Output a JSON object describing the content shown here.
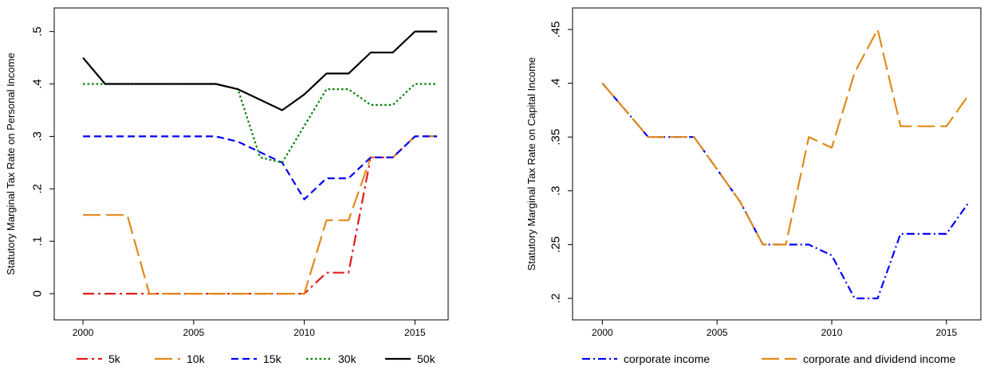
{
  "chart_data": [
    {
      "type": "line",
      "ylabel": "Statutory Marginal Tax Rate on Personal Income",
      "xlabel": "",
      "xlim": [
        1998.7,
        2016.5
      ],
      "ylim": [
        -0.05,
        0.545
      ],
      "xticks": [
        2000,
        2005,
        2010,
        2015
      ],
      "xtick_labels": [
        "2000",
        "2005",
        "2010",
        "2015"
      ],
      "yticks": [
        0,
        0.1,
        0.2,
        0.3,
        0.4,
        0.5
      ],
      "ytick_labels": [
        "0",
        ".1",
        ".2",
        ".3",
        ".4",
        ".5"
      ],
      "grid": false,
      "legend_position": "bottom",
      "x": [
        2000,
        2001,
        2002,
        2003,
        2004,
        2005,
        2006,
        2007,
        2008,
        2009,
        2010,
        2011,
        2012,
        2013,
        2014,
        2015,
        2016
      ],
      "series": [
        {
          "name": "5k",
          "color": "#e41a1c",
          "dash": "longdashdot",
          "values": [
            0,
            0,
            0,
            0,
            0,
            0,
            0,
            0,
            0,
            0,
            0,
            0.04,
            0.04,
            0.26,
            0.26,
            0.3,
            0.3
          ]
        },
        {
          "name": "10k",
          "color": "#e08a1a",
          "dash": "longdash",
          "values": [
            0.15,
            0.15,
            0.15,
            0,
            0,
            0,
            0,
            0,
            0,
            0,
            0,
            0.14,
            0.14,
            0.26,
            0.26,
            0.3,
            0.3
          ]
        },
        {
          "name": "15k",
          "color": "#0000ff",
          "dash": "dash",
          "values": [
            0.3,
            0.3,
            0.3,
            0.3,
            0.3,
            0.3,
            0.3,
            0.29,
            0.27,
            0.25,
            0.18,
            0.22,
            0.22,
            0.26,
            0.26,
            0.3,
            0.3
          ]
        },
        {
          "name": "30k",
          "color": "#008000",
          "dash": "dot",
          "values": [
            0.4,
            0.4,
            0.4,
            0.4,
            0.4,
            0.4,
            0.4,
            0.39,
            0.26,
            0.25,
            0.32,
            0.39,
            0.39,
            0.36,
            0.36,
            0.4,
            0.4
          ]
        },
        {
          "name": "50k",
          "color": "#000000",
          "dash": "solid",
          "values": [
            0.45,
            0.4,
            0.4,
            0.4,
            0.4,
            0.4,
            0.4,
            0.39,
            0.37,
            0.35,
            0.38,
            0.42,
            0.42,
            0.46,
            0.46,
            0.5,
            0.5
          ]
        }
      ]
    },
    {
      "type": "line",
      "ylabel": "Statutory Marginal Tax Rate on Capital Income",
      "xlabel": "",
      "xlim": [
        1998.7,
        2016.5
      ],
      "ylim": [
        0.18,
        0.47
      ],
      "xticks": [
        2000,
        2005,
        2010,
        2015
      ],
      "xtick_labels": [
        "2000",
        "2005",
        "2010",
        "2015"
      ],
      "yticks": [
        0.2,
        0.25,
        0.3,
        0.35,
        0.4,
        0.45
      ],
      "ytick_labels": [
        ".2",
        ".25",
        ".3",
        ".35",
        ".4",
        ".45"
      ],
      "grid": false,
      "legend_position": "bottom",
      "x": [
        2000,
        2001,
        2002,
        2003,
        2004,
        2005,
        2006,
        2007,
        2008,
        2009,
        2010,
        2011,
        2012,
        2013,
        2014,
        2015,
        2016
      ],
      "series": [
        {
          "name": "corporate income",
          "color": "#0000ff",
          "dash": "dashdot",
          "values": [
            0.4,
            0.375,
            0.35,
            0.35,
            0.35,
            0.32,
            0.29,
            0.25,
            0.25,
            0.25,
            0.24,
            0.2,
            0.2,
            0.26,
            0.26,
            0.26,
            0.29
          ]
        },
        {
          "name": "corporate and dividend income",
          "color": "#e08a1a",
          "dash": "longdash",
          "values": [
            0.4,
            0.375,
            0.35,
            0.35,
            0.35,
            0.32,
            0.29,
            0.25,
            0.25,
            0.35,
            0.34,
            0.41,
            0.45,
            0.36,
            0.36,
            0.36,
            0.39
          ]
        }
      ]
    }
  ]
}
